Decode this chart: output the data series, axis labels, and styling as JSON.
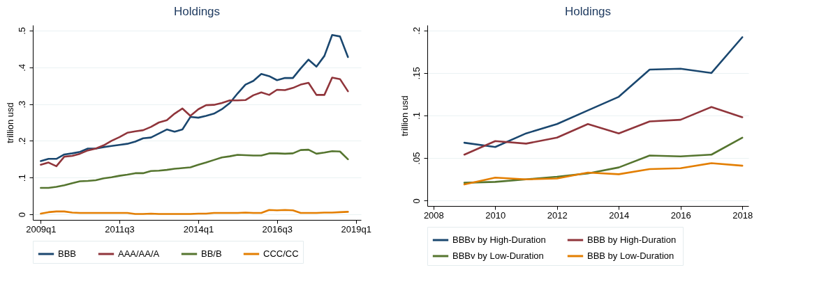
{
  "chart_data": [
    {
      "type": "line",
      "title": "Holdings",
      "ylabel": "trillion usd",
      "x": [
        "2009-01",
        "2009-04",
        "2009-07",
        "2009-10",
        "2010-01",
        "2010-04",
        "2010-07",
        "2010-10",
        "2011-01",
        "2011-04",
        "2011-07",
        "2011-10",
        "2012-01",
        "2012-04",
        "2012-07",
        "2012-10",
        "2013-01",
        "2013-04",
        "2013-07",
        "2013-10",
        "2014-01",
        "2014-04",
        "2014-07",
        "2014-10",
        "2015-01",
        "2015-04",
        "2015-07",
        "2015-10",
        "2016-01",
        "2016-04",
        "2016-07",
        "2016-10",
        "2017-01",
        "2017-04",
        "2017-07",
        "2017-10",
        "2018-01",
        "2018-04",
        "2018-07",
        "2018-10"
      ],
      "series": [
        {
          "name": "BBB",
          "color": "#1a476f",
          "values": [
            0.145,
            0.151,
            0.151,
            0.163,
            0.166,
            0.17,
            0.179,
            0.179,
            0.183,
            0.186,
            0.189,
            0.192,
            0.198,
            0.207,
            0.209,
            0.22,
            0.231,
            0.225,
            0.231,
            0.265,
            0.263,
            0.268,
            0.274,
            0.286,
            0.303,
            0.329,
            0.353,
            0.363,
            0.382,
            0.376,
            0.365,
            0.371,
            0.371,
            0.397,
            0.421,
            0.402,
            0.431,
            0.488,
            0.484,
            0.428
          ]
        },
        {
          "name": "AAA/AA/A",
          "color": "#90353b",
          "values": [
            0.135,
            0.141,
            0.131,
            0.157,
            0.159,
            0.165,
            0.174,
            0.179,
            0.188,
            0.2,
            0.21,
            0.222,
            0.226,
            0.229,
            0.238,
            0.25,
            0.256,
            0.274,
            0.288,
            0.268,
            0.286,
            0.297,
            0.298,
            0.303,
            0.31,
            0.31,
            0.311,
            0.324,
            0.332,
            0.325,
            0.339,
            0.338,
            0.344,
            0.353,
            0.358,
            0.325,
            0.325,
            0.372,
            0.368,
            0.335
          ]
        },
        {
          "name": "BB/B",
          "color": "#55752f",
          "values": [
            0.072,
            0.072,
            0.075,
            0.079,
            0.085,
            0.09,
            0.091,
            0.093,
            0.098,
            0.101,
            0.105,
            0.108,
            0.112,
            0.112,
            0.118,
            0.119,
            0.121,
            0.124,
            0.126,
            0.128,
            0.135,
            0.141,
            0.148,
            0.155,
            0.158,
            0.162,
            0.161,
            0.16,
            0.16,
            0.166,
            0.166,
            0.165,
            0.166,
            0.175,
            0.176,
            0.165,
            0.168,
            0.172,
            0.171,
            0.15
          ]
        },
        {
          "name": "CCC/CC",
          "color": "#e37e00",
          "values": [
            0.002,
            0.006,
            0.008,
            0.008,
            0.005,
            0.004,
            0.004,
            0.004,
            0.004,
            0.004,
            0.004,
            0.004,
            0.001,
            0.001,
            0.002,
            0.001,
            0.001,
            0.001,
            0.001,
            0.001,
            0.002,
            0.002,
            0.004,
            0.004,
            0.004,
            0.004,
            0.005,
            0.004,
            0.004,
            0.012,
            0.011,
            0.012,
            0.011,
            0.004,
            0.004,
            0.004,
            0.005,
            0.005,
            0.006,
            0.007
          ]
        }
      ],
      "xlim": [
        "2008-10",
        "2019-03"
      ],
      "xticks": [
        {
          "value": "2009-01",
          "label": "2009q1"
        },
        {
          "value": "2011-07",
          "label": "2011q3"
        },
        {
          "value": "2014-01",
          "label": "2014q1"
        },
        {
          "value": "2016-07",
          "label": "2016q3"
        },
        {
          "value": "2019-01",
          "label": "2019q1"
        }
      ],
      "ylim": [
        -0.015,
        0.515
      ],
      "yticks": [
        0,
        {
          "value": 0.1,
          "label": ".1"
        },
        {
          "value": 0.2,
          "label": ".2"
        },
        {
          "value": 0.3,
          "label": ".3"
        },
        {
          "value": 0.4,
          "label": ".4"
        },
        {
          "value": 0.5,
          "label": ".5"
        }
      ],
      "grid": "y",
      "legend": "bottom"
    },
    {
      "type": "line",
      "title": "Holdings",
      "ylabel": "trillion usd",
      "x": [
        2009,
        2010,
        2011,
        2012,
        2013,
        2014,
        2015,
        2016,
        2017,
        2018
      ],
      "series": [
        {
          "name": "BBBv by High-Duration",
          "color": "#1a476f",
          "values": [
            0.068,
            0.063,
            0.079,
            0.09,
            0.106,
            0.122,
            0.154,
            0.155,
            0.15,
            0.192
          ]
        },
        {
          "name": "BBB  by High-Duration",
          "color": "#90353b",
          "values": [
            0.054,
            0.07,
            0.067,
            0.074,
            0.09,
            0.079,
            0.093,
            0.095,
            0.11,
            0.098
          ]
        },
        {
          "name": "BBBv by Low-Duration",
          "color": "#55752f",
          "values": [
            0.021,
            0.022,
            0.025,
            0.028,
            0.032,
            0.039,
            0.053,
            0.052,
            0.054,
            0.074
          ]
        },
        {
          "name": "BBB  by Low-Duration",
          "color": "#e37e00",
          "values": [
            0.019,
            0.027,
            0.025,
            0.026,
            0.033,
            0.031,
            0.037,
            0.038,
            0.044,
            0.041
          ]
        }
      ],
      "xlim": [
        2007.8,
        2018.2
      ],
      "xticks": [
        2008,
        2010,
        2012,
        2014,
        2016,
        2018
      ],
      "ylim": [
        -0.0063,
        0.2063
      ],
      "yticks": [
        0,
        {
          "value": 0.05,
          "label": ".05"
        },
        {
          "value": 0.1,
          "label": ".1"
        },
        {
          "value": 0.15,
          "label": ".15"
        },
        {
          "value": 0.2,
          "label": ".2"
        }
      ],
      "grid": "y",
      "legend": "bottom"
    }
  ]
}
